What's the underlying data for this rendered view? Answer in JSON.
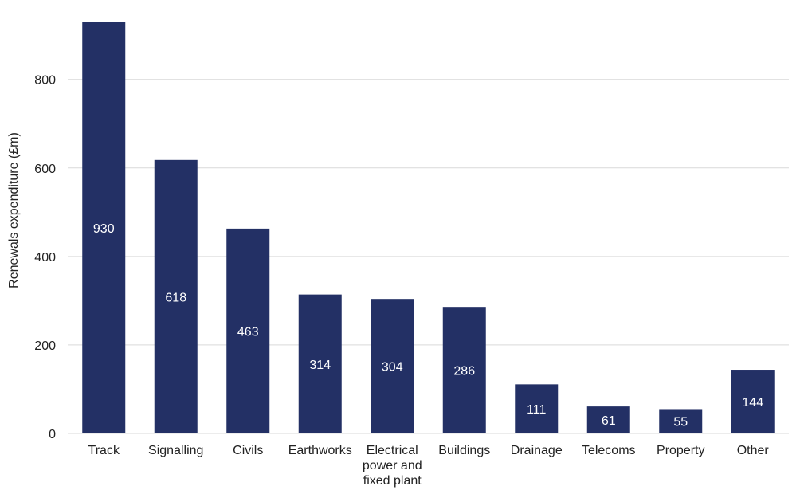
{
  "colors": {
    "bar": "#233065",
    "grid": "#d9d9d9",
    "text": "#222222",
    "data_label": "#ffffff"
  },
  "chart_data": {
    "type": "bar",
    "ylabel": "Renewals expenditure (£m)",
    "ylim": [
      0,
      940
    ],
    "yticks": [
      0,
      200,
      400,
      600,
      800
    ],
    "yticklabels": [
      "0",
      "200",
      "400",
      "600",
      "800"
    ],
    "grid": true,
    "categories": [
      "Track",
      "Signalling",
      "Civils",
      "Earthworks",
      "Electrical power and fixed plant",
      "Buildings",
      "Drainage",
      "Telecoms",
      "Property",
      "Other"
    ],
    "category_lines": [
      [
        "Track"
      ],
      [
        "Signalling"
      ],
      [
        "Civils"
      ],
      [
        "Earthworks"
      ],
      [
        "Electrical",
        "power and",
        "fixed plant"
      ],
      [
        "Buildings"
      ],
      [
        "Drainage"
      ],
      [
        "Telecoms"
      ],
      [
        "Property"
      ],
      [
        "Other"
      ]
    ],
    "values": [
      930,
      618,
      463,
      314,
      304,
      286,
      111,
      61,
      55,
      144
    ],
    "data_labels": [
      "930",
      "618",
      "463",
      "314",
      "304",
      "286",
      "111",
      "61",
      "55",
      "144"
    ]
  }
}
